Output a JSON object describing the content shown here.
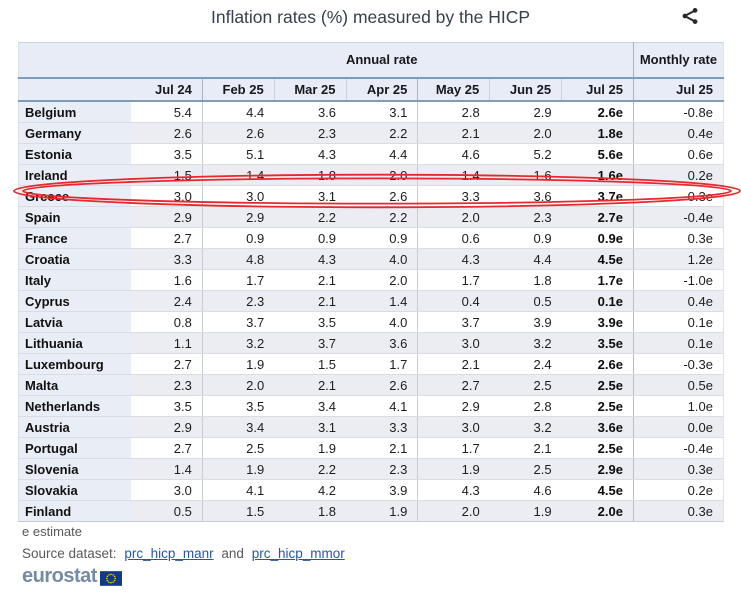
{
  "title": "Inflation rates (%) measured by the HICP",
  "share_label": "share",
  "chart_data": {
    "type": "table",
    "title": "Inflation rates (%) measured by the HICP",
    "column_groups": [
      {
        "label": "Annual rate",
        "span": 7
      },
      {
        "label": "Monthly rate",
        "span": 1
      }
    ],
    "columns": [
      "Jul 24",
      "Feb 25",
      "Mar 25",
      "Apr 25",
      "May 25",
      "Jun 25",
      "Jul 25",
      "Jul 25"
    ],
    "rows": [
      {
        "country": "Belgium",
        "annual": [
          "5.4",
          "4.4",
          "3.6",
          "3.1",
          "2.8",
          "2.9",
          "2.6e"
        ],
        "monthly": "-0.8e"
      },
      {
        "country": "Germany",
        "annual": [
          "2.6",
          "2.6",
          "2.3",
          "2.2",
          "2.1",
          "2.0",
          "1.8e"
        ],
        "monthly": "0.4e"
      },
      {
        "country": "Estonia",
        "annual": [
          "3.5",
          "5.1",
          "4.3",
          "4.4",
          "4.6",
          "5.2",
          "5.6e"
        ],
        "monthly": "0.6e"
      },
      {
        "country": "Ireland",
        "annual": [
          "1.5",
          "1.4",
          "1.8",
          "2.0",
          "1.4",
          "1.6",
          "1.6e"
        ],
        "monthly": "0.2e"
      },
      {
        "country": "Greece",
        "annual": [
          "3.0",
          "3.0",
          "3.1",
          "2.6",
          "3.3",
          "3.6",
          "3.7e"
        ],
        "monthly": "-0.3e"
      },
      {
        "country": "Spain",
        "annual": [
          "2.9",
          "2.9",
          "2.2",
          "2.2",
          "2.0",
          "2.3",
          "2.7e"
        ],
        "monthly": "-0.4e"
      },
      {
        "country": "France",
        "annual": [
          "2.7",
          "0.9",
          "0.9",
          "0.9",
          "0.6",
          "0.9",
          "0.9e"
        ],
        "monthly": "0.3e"
      },
      {
        "country": "Croatia",
        "annual": [
          "3.3",
          "4.8",
          "4.3",
          "4.0",
          "4.3",
          "4.4",
          "4.5e"
        ],
        "monthly": "1.2e"
      },
      {
        "country": "Italy",
        "annual": [
          "1.6",
          "1.7",
          "2.1",
          "2.0",
          "1.7",
          "1.8",
          "1.7e"
        ],
        "monthly": "-1.0e"
      },
      {
        "country": "Cyprus",
        "annual": [
          "2.4",
          "2.3",
          "2.1",
          "1.4",
          "0.4",
          "0.5",
          "0.1e"
        ],
        "monthly": "0.4e"
      },
      {
        "country": "Latvia",
        "annual": [
          "0.8",
          "3.7",
          "3.5",
          "4.0",
          "3.7",
          "3.9",
          "3.9e"
        ],
        "monthly": "0.1e"
      },
      {
        "country": "Lithuania",
        "annual": [
          "1.1",
          "3.2",
          "3.7",
          "3.6",
          "3.0",
          "3.2",
          "3.5e"
        ],
        "monthly": "0.1e"
      },
      {
        "country": "Luxembourg",
        "annual": [
          "2.7",
          "1.9",
          "1.5",
          "1.7",
          "2.1",
          "2.4",
          "2.6e"
        ],
        "monthly": "-0.3e"
      },
      {
        "country": "Malta",
        "annual": [
          "2.3",
          "2.0",
          "2.1",
          "2.6",
          "2.7",
          "2.5",
          "2.5e"
        ],
        "monthly": "0.5e"
      },
      {
        "country": "Netherlands",
        "annual": [
          "3.5",
          "3.5",
          "3.4",
          "4.1",
          "2.9",
          "2.8",
          "2.5e"
        ],
        "monthly": "1.0e"
      },
      {
        "country": "Austria",
        "annual": [
          "2.9",
          "3.4",
          "3.1",
          "3.3",
          "3.0",
          "3.2",
          "3.6e"
        ],
        "monthly": "0.0e"
      },
      {
        "country": "Portugal",
        "annual": [
          "2.7",
          "2.5",
          "1.9",
          "2.1",
          "1.7",
          "2.1",
          "2.5e"
        ],
        "monthly": "-0.4e"
      },
      {
        "country": "Slovenia",
        "annual": [
          "1.4",
          "1.9",
          "2.2",
          "2.3",
          "1.9",
          "2.5",
          "2.9e"
        ],
        "monthly": "0.3e"
      },
      {
        "country": "Slovakia",
        "annual": [
          "3.0",
          "4.1",
          "4.2",
          "3.9",
          "4.3",
          "4.6",
          "4.5e"
        ],
        "monthly": "0.2e"
      },
      {
        "country": "Finland",
        "annual": [
          "0.5",
          "1.5",
          "1.8",
          "1.9",
          "2.0",
          "1.9",
          "2.0e"
        ],
        "monthly": "0.3e"
      }
    ],
    "annotation": {
      "shape": "red-double-ellipse",
      "target_row": "Greece"
    },
    "note": "e estimate"
  },
  "footer": {
    "note": "e estimate",
    "source_prefix": "Source dataset:",
    "link1": "prc_hicp_manr",
    "conjunction": "and",
    "link2": "prc_hicp_mmor",
    "logo_text": "eurostat"
  },
  "colors": {
    "header_line": "#7f9cba",
    "header_bg": "#e7ecf6",
    "alt_row_bg": "#ebedf3",
    "highlight_red": "#e8282c",
    "link_blue": "#2757a9",
    "logo_blue": "#758ba3",
    "flag_blue": "#123a8c",
    "flag_stars": "#ffcc00"
  }
}
